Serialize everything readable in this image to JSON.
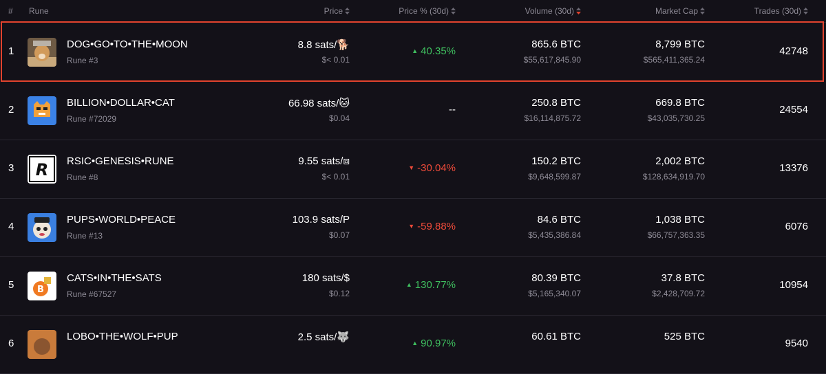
{
  "table": {
    "header": {
      "rank": "#",
      "rune": "Rune",
      "price": "Price",
      "change": "Price % (30d)",
      "volume": "Volume (30d)",
      "market_cap": "Market Cap",
      "trades": "Trades (30d)"
    },
    "rows": [
      {
        "rank": "1",
        "name": "DOG•GO•TO•THE•MOON",
        "rune": "Rune #3",
        "price": "8.8 sats/🐕",
        "price_usd": "$< 0.01",
        "change": {
          "arrow": "▲",
          "text": "40.35%",
          "dir": "up"
        },
        "volume": "865.6 BTC",
        "volume_usd": "$55,617,845.90",
        "market_cap": "8,799 BTC",
        "market_cap_usd": "$565,411,365.24",
        "trades": "42748",
        "icon": "dog",
        "highlight": true
      },
      {
        "rank": "2",
        "name": "BILLION•DOLLAR•CAT",
        "rune": "Rune #72029",
        "price": "66.98 sats/🐱",
        "price_usd": "$0.04",
        "change": {
          "arrow": "",
          "text": "--",
          "dir": "none"
        },
        "volume": "250.8 BTC",
        "volume_usd": "$16,114,875.72",
        "market_cap": "669.8 BTC",
        "market_cap_usd": "$43,035,730.25",
        "trades": "24554",
        "icon": "cat"
      },
      {
        "rank": "3",
        "name": "RSIC•GENESIS•RUNE",
        "rune": "Rune #8",
        "price": "9.55 sats/⧈",
        "price_usd": "$< 0.01",
        "change": {
          "arrow": "▼",
          "text": "-30.04%",
          "dir": "down"
        },
        "volume": "150.2 BTC",
        "volume_usd": "$9,648,599.87",
        "market_cap": "2,002 BTC",
        "market_cap_usd": "$128,634,919.70",
        "trades": "13376",
        "icon": "rsic"
      },
      {
        "rank": "4",
        "name": "PUPS•WORLD•PEACE",
        "rune": "Rune #13",
        "price": "103.9 sats/P",
        "price_usd": "$0.07",
        "change": {
          "arrow": "▼",
          "text": "-59.88%",
          "dir": "down"
        },
        "volume": "84.6 BTC",
        "volume_usd": "$5,435,386.84",
        "market_cap": "1,038 BTC",
        "market_cap_usd": "$66,757,363.35",
        "trades": "6076",
        "icon": "pups"
      },
      {
        "rank": "5",
        "name": "CATS•IN•THE•SATS",
        "rune": "Rune #67527",
        "price": "180 sats/$",
        "price_usd": "$0.12",
        "change": {
          "arrow": "▲",
          "text": "130.77%",
          "dir": "up"
        },
        "volume": "80.39 BTC",
        "volume_usd": "$5,165,340.07",
        "market_cap": "37.8 BTC",
        "market_cap_usd": "$2,428,709.72",
        "trades": "10954",
        "icon": "cats"
      },
      {
        "rank": "6",
        "name": "LOBO•THE•WOLF•PUP",
        "price": "2.5 sats/🐺",
        "change": {
          "arrow": "▲",
          "text": "90.97%",
          "dir": "up"
        },
        "volume": "60.61 BTC",
        "market_cap": "525 BTC",
        "trades": "9540",
        "icon": "lobo"
      }
    ]
  }
}
